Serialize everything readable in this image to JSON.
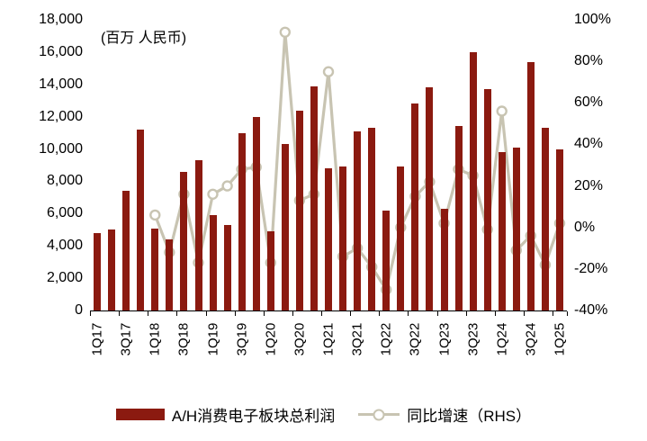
{
  "chart_data": {
    "type": "bar+line",
    "title_note": "(百万 人民币)",
    "categories": [
      "1Q17",
      "2Q17",
      "3Q17",
      "4Q17",
      "1Q18",
      "2Q18",
      "3Q18",
      "4Q18",
      "1Q19",
      "2Q19",
      "3Q19",
      "4Q19",
      "1Q20",
      "2Q20",
      "3Q20",
      "4Q20",
      "1Q21",
      "2Q21",
      "3Q21",
      "4Q21",
      "1Q22",
      "2Q22",
      "3Q22",
      "4Q22",
      "1Q23",
      "2Q23",
      "3Q23",
      "4Q23",
      "1Q24",
      "2Q24",
      "3Q24",
      "4Q24",
      "1Q25"
    ],
    "x_tick_labels": [
      "1Q17",
      "3Q17",
      "1Q18",
      "3Q18",
      "1Q19",
      "3Q19",
      "1Q20",
      "3Q20",
      "1Q21",
      "3Q21",
      "1Q22",
      "3Q22",
      "1Q23",
      "3Q23",
      "1Q24",
      "3Q24",
      "1Q25"
    ],
    "series": [
      {
        "name": "A/H消费电子板块总利润",
        "type": "bar",
        "axis": "left",
        "values": [
          4800,
          5000,
          7400,
          11200,
          5100,
          4400,
          8600,
          9300,
          5900,
          5300,
          11000,
          12000,
          4900,
          10300,
          12400,
          13900,
          8800,
          8900,
          11100,
          11300,
          6200,
          8900,
          12800,
          13800,
          6300,
          11400,
          16000,
          13700,
          9800,
          10100,
          15400,
          11300,
          10000
        ]
      },
      {
        "name": "同比增速（RHS）",
        "type": "line",
        "axis": "right",
        "unit": "%",
        "values": [
          null,
          null,
          null,
          null,
          6,
          -12,
          16,
          -17,
          16,
          20,
          28,
          29,
          -17,
          94,
          13,
          16,
          75,
          -14,
          -10,
          -19,
          -30,
          0,
          15,
          22,
          2,
          28,
          25,
          -1,
          56,
          -11,
          -4,
          -18,
          2
        ]
      }
    ],
    "left_axis": {
      "min": 0,
      "max": 18000,
      "step": 2000,
      "tick_labels": [
        "0",
        "2,000",
        "4,000",
        "6,000",
        "8,000",
        "10,000",
        "12,000",
        "14,000",
        "16,000",
        "18,000"
      ]
    },
    "right_axis": {
      "min": -40,
      "max": 100,
      "step": 20,
      "tick_labels": [
        "-40%",
        "-20%",
        "0%",
        "20%",
        "40%",
        "60%",
        "80%",
        "100%"
      ]
    },
    "grid": false,
    "legend_position": "bottom",
    "colors": {
      "bar": "#8b1a10",
      "line": "#c8c4b2",
      "marker_fill": "#ffffff",
      "axis": "#000000"
    }
  },
  "legend": {
    "bar_label": "A/H消费电子板块总利润",
    "line_label": "同比增速（RHS）"
  }
}
